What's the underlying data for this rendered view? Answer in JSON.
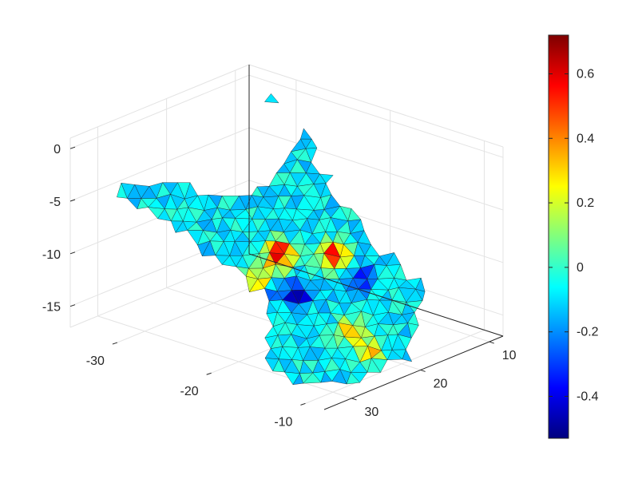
{
  "chart_data": {
    "type": "surface",
    "title": "",
    "xlabel": "",
    "ylabel": "",
    "zlabel": "",
    "grid": true,
    "colormap": "jet",
    "x_axis": {
      "ticks": [
        -30,
        -20,
        -10
      ],
      "tick_labels": [
        "-30",
        "-20",
        "-10"
      ],
      "range": [
        -35,
        -8
      ]
    },
    "y_axis": {
      "ticks": [
        10,
        20,
        30
      ],
      "tick_labels": [
        "10",
        "20",
        "30"
      ],
      "range": [
        8,
        34
      ]
    },
    "z_axis": {
      "ticks": [
        0,
        -5,
        -10,
        -15
      ],
      "tick_labels": [
        "0",
        "-5",
        "-10",
        "-15"
      ],
      "range": [
        -17,
        1
      ]
    },
    "colorbar": {
      "ticks": [
        0.6,
        0.4,
        0.2,
        0,
        -0.2,
        -0.4
      ],
      "tick_labels": [
        "0.6",
        "0.4",
        "0.2",
        "0",
        "-0.2",
        "-0.4"
      ],
      "range": [
        -0.53,
        0.72
      ],
      "location": "right"
    },
    "color_stops": [
      "#00007f",
      "#0000ff",
      "#007fff",
      "#00ffff",
      "#7fff7f",
      "#ffff00",
      "#ff7f00",
      "#ff0000",
      "#7f0000"
    ],
    "surface_base_value": -0.08,
    "hotspots": [
      {
        "label": "peak",
        "value": 0.7
      },
      {
        "label": "peak",
        "value": 0.55
      },
      {
        "label": "peak",
        "value": 0.4
      },
      {
        "label": "peak",
        "value": 0.35
      },
      {
        "label": "peak",
        "value": 0.3
      },
      {
        "label": "trough",
        "value": -0.45
      },
      {
        "label": "trough",
        "value": -0.35
      },
      {
        "label": "trough",
        "value": -0.3
      }
    ]
  }
}
